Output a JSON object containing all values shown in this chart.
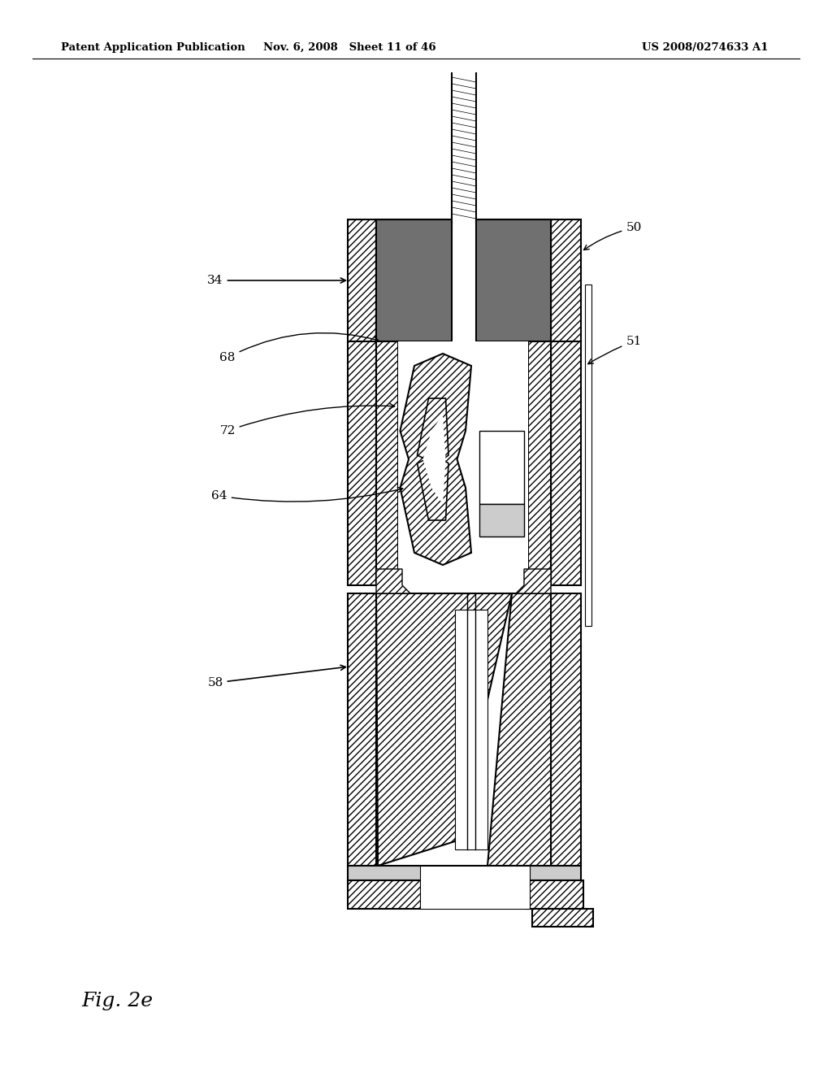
{
  "header_left": "Patent Application Publication",
  "header_mid": "Nov. 6, 2008   Sheet 11 of 46",
  "header_right": "US 2008/0274633 A1",
  "fig_caption": "Fig. 2e",
  "bg_color": "#ffffff"
}
